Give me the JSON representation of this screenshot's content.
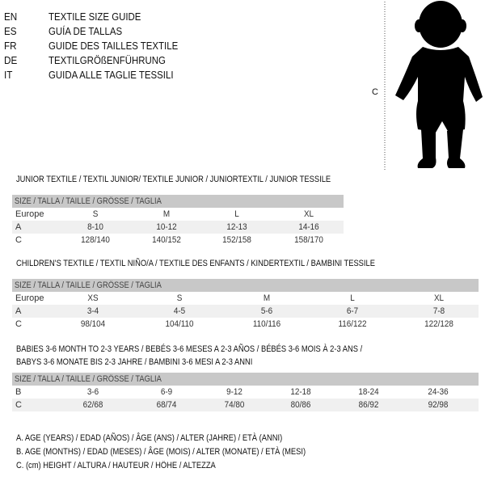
{
  "guide_titles": [
    {
      "code": "EN",
      "text": "TEXTILE SIZE GUIDE"
    },
    {
      "code": "ES",
      "text": "GUÍA DE TALLAS"
    },
    {
      "code": "FR",
      "text": "GUIDE DES TAILLES TEXTILE"
    },
    {
      "code": "DE",
      "text": "TEXTILGRÖßENFÜHRUNG"
    },
    {
      "code": "IT",
      "text": "GUIDA ALLE TAGLIE TESSILI"
    }
  ],
  "figure": {
    "height_marker": "C"
  },
  "size_header": "SIZE / TALLA / TAILLE / GRÖSSE / TAGLIA",
  "junior": {
    "title": "JUNIOR TEXTILE / TEXTIL JUNIOR/ TEXTILE JUNIOR / JUNIORTEXTIL / JUNIOR TESSILE",
    "rows": [
      {
        "label": "Europe",
        "values": [
          "S",
          "M",
          "L",
          "XL"
        ]
      },
      {
        "label": "A",
        "values": [
          "8-10",
          "10-12",
          "12-13",
          "14-16"
        ]
      },
      {
        "label": "C",
        "values": [
          "128/140",
          "140/152",
          "152/158",
          "158/170"
        ]
      }
    ]
  },
  "children": {
    "title": "CHILDREN'S TEXTILE / TEXTIL NIÑO/A / TEXTILE DES ENFANTS / KINDERTEXTIL / BAMBINI TESSILE",
    "rows": [
      {
        "label": "Europe",
        "values": [
          "XS",
          "S",
          "M",
          "L",
          "XL"
        ]
      },
      {
        "label": "A",
        "values": [
          "3-4",
          "4-5",
          "5-6",
          "6-7",
          "7-8"
        ]
      },
      {
        "label": "C",
        "values": [
          "98/104",
          "104/110",
          "110/116",
          "116/122",
          "122/128"
        ]
      }
    ]
  },
  "babies": {
    "title_line1": "BABIES 3-6 MONTH TO 2-3 YEARS / BEBÉS 3-6 MESES A 2-3 AÑOS / BÉBÉS 3-6 MOIS À 2-3 ANS /",
    "title_line2": "BABYS 3-6 MONATE BIS 2-3 JAHRE / BAMBINI 3-6 MESI A 2-3 ANNI",
    "rows": [
      {
        "label": "B",
        "values": [
          "3-6",
          "6-9",
          "9-12",
          "12-18",
          "18-24",
          "24-36"
        ]
      },
      {
        "label": "C",
        "values": [
          "62/68",
          "68/74",
          "74/80",
          "80/86",
          "86/92",
          "92/98"
        ]
      }
    ]
  },
  "legend": [
    "A. AGE (YEARS) / EDAD (AÑOS) / ÂGE (ANS) / ALTER (JAHRE) / ETÀ (ANNI)",
    "B. AGE (MONTHS) / EDAD (MESES) / ÂGE (MOIS) / ALTER (MONATE) / ETÀ (MESI)",
    "C. (cm) HEIGHT / ALTURA / HAUTEUR / HÖHE / ALTEZZA"
  ]
}
